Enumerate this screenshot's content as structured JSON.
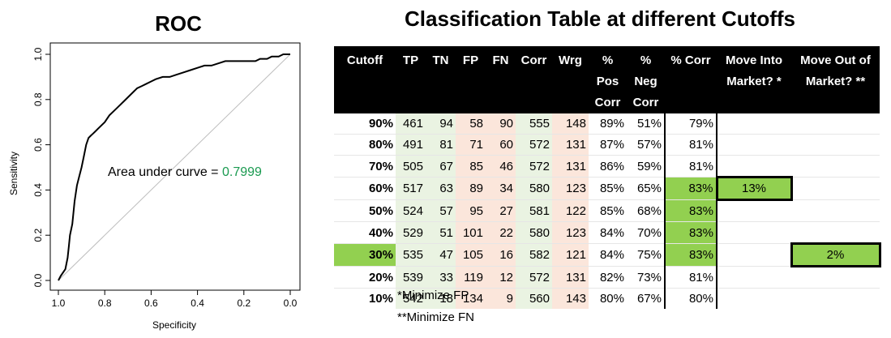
{
  "roc": {
    "title": "ROC",
    "auc_label": "Area under curve = ",
    "auc_value": "0.7999",
    "auc_color": "#1a9a50",
    "xlabel": "Specificity",
    "ylabel": "Sensitivity",
    "xticks": [
      "1.0",
      "0.8",
      "0.6",
      "0.4",
      "0.2",
      "0.0"
    ],
    "yticks": [
      "0.0",
      "0.2",
      "0.4",
      "0.6",
      "0.8",
      "1.0"
    ]
  },
  "chart_data": {
    "type": "line",
    "title": "ROC",
    "xlabel": "Specificity",
    "ylabel": "Sensitivity",
    "xlim": [
      1.0,
      0.0
    ],
    "ylim": [
      0.0,
      1.0
    ],
    "x_reversed": true,
    "auc": 0.7999,
    "series": [
      {
        "values_x": [
          1.0,
          0.99,
          0.97,
          0.96,
          0.955,
          0.95,
          0.94,
          0.935,
          0.93,
          0.92,
          0.91,
          0.9,
          0.89,
          0.88,
          0.87,
          0.86,
          0.85,
          0.84,
          0.83,
          0.8,
          0.78,
          0.76,
          0.74,
          0.72,
          0.7,
          0.68,
          0.66,
          0.64,
          0.62,
          0.6,
          0.58,
          0.55,
          0.52,
          0.49,
          0.46,
          0.43,
          0.4,
          0.37,
          0.34,
          0.31,
          0.28,
          0.25,
          0.22,
          0.2,
          0.17,
          0.15,
          0.13,
          0.1,
          0.08,
          0.05,
          0.03,
          0.0
        ],
        "values_y": [
          0.0,
          0.02,
          0.05,
          0.1,
          0.15,
          0.2,
          0.25,
          0.3,
          0.35,
          0.42,
          0.46,
          0.5,
          0.55,
          0.6,
          0.63,
          0.64,
          0.65,
          0.66,
          0.67,
          0.7,
          0.73,
          0.75,
          0.77,
          0.79,
          0.81,
          0.83,
          0.85,
          0.86,
          0.87,
          0.88,
          0.89,
          0.9,
          0.9,
          0.91,
          0.92,
          0.93,
          0.94,
          0.95,
          0.95,
          0.96,
          0.97,
          0.97,
          0.97,
          0.97,
          0.97,
          0.97,
          0.98,
          0.98,
          0.99,
          0.99,
          1.0,
          1.0
        ]
      },
      {
        "values_x": [
          1.0,
          0.0
        ],
        "values_y": [
          0.0,
          1.0
        ]
      }
    ]
  },
  "table": {
    "title": "Classification Table at different Cutoffs",
    "headers": [
      "Cutoff",
      "TP",
      "TN",
      "FP",
      "FN",
      "Corr",
      "Wrg",
      "% Pos Corr",
      "% Neg Corr",
      "% Corr",
      "Move Into Market? *",
      "Move Out of Market? **"
    ],
    "rows": [
      [
        "90%",
        "461",
        "94",
        "58",
        "90",
        "555",
        "148",
        "89%",
        "51%",
        "79%",
        "",
        ""
      ],
      [
        "80%",
        "491",
        "81",
        "71",
        "60",
        "572",
        "131",
        "87%",
        "57%",
        "81%",
        "",
        ""
      ],
      [
        "70%",
        "505",
        "67",
        "85",
        "46",
        "572",
        "131",
        "86%",
        "59%",
        "81%",
        "",
        ""
      ],
      [
        "60%",
        "517",
        "63",
        "89",
        "34",
        "580",
        "123",
        "85%",
        "65%",
        "83%",
        "13%",
        ""
      ],
      [
        "50%",
        "524",
        "57",
        "95",
        "27",
        "581",
        "122",
        "85%",
        "68%",
        "83%",
        "",
        ""
      ],
      [
        "40%",
        "529",
        "51",
        "101",
        "22",
        "580",
        "123",
        "84%",
        "70%",
        "83%",
        "",
        ""
      ],
      [
        "30%",
        "535",
        "47",
        "105",
        "16",
        "582",
        "121",
        "84%",
        "75%",
        "83%",
        "",
        "2%"
      ],
      [
        "20%",
        "539",
        "33",
        "119",
        "12",
        "572",
        "131",
        "82%",
        "73%",
        "81%",
        "",
        ""
      ],
      [
        "10%",
        "542",
        "18",
        "134",
        "9",
        "560",
        "143",
        "80%",
        "67%",
        "80%",
        "",
        ""
      ]
    ],
    "highlight_color": "#92d050",
    "notes": [
      "*Minimize FP",
      "**Minimize FN"
    ]
  }
}
